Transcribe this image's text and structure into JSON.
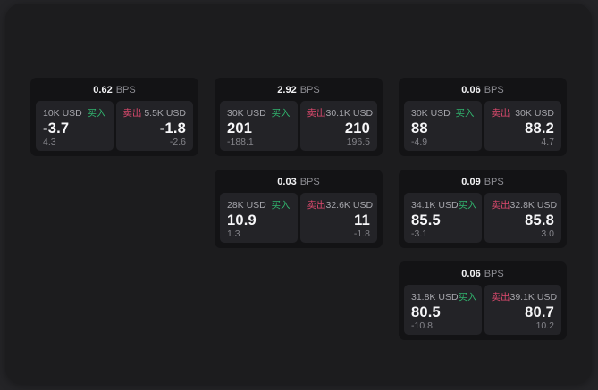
{
  "labels": {
    "buy": "买入",
    "sell": "卖出",
    "bps_unit": "BPS"
  },
  "colors": {
    "buy_green": "#31b46e",
    "sell_red": "#dd4a6e",
    "page_bg": "#242427",
    "panel_bg": "#1c1c1e",
    "card_bg": "#131315",
    "subpanel_bg": "#232327"
  },
  "cards": [
    {
      "bps": "0.62",
      "buy": {
        "amount": "10K USD",
        "value": "-3.7",
        "sub": "4.3"
      },
      "sell": {
        "amount": "5.5K USD",
        "value": "-1.8",
        "sub": "-2.6"
      }
    },
    {
      "bps": "2.92",
      "buy": {
        "amount": "30K USD",
        "value": "201",
        "sub": "-188.1"
      },
      "sell": {
        "amount": "30.1K USD",
        "value": "210",
        "sub": "196.5"
      }
    },
    {
      "bps": "0.06",
      "buy": {
        "amount": "30K USD",
        "value": "88",
        "sub": "-4.9"
      },
      "sell": {
        "amount": "30K USD",
        "value": "88.2",
        "sub": "4.7"
      }
    },
    {
      "bps": "0.03",
      "buy": {
        "amount": "28K USD",
        "value": "10.9",
        "sub": "1.3"
      },
      "sell": {
        "amount": "32.6K USD",
        "value": "11",
        "sub": "-1.8"
      }
    },
    {
      "bps": "0.09",
      "buy": {
        "amount": "34.1K USD",
        "value": "85.5",
        "sub": "-3.1"
      },
      "sell": {
        "amount": "32.8K USD",
        "value": "85.8",
        "sub": "3.0"
      }
    },
    {
      "bps": "0.06",
      "buy": {
        "amount": "31.8K USD",
        "value": "80.5",
        "sub": "-10.8"
      },
      "sell": {
        "amount": "39.1K USD",
        "value": "80.7",
        "sub": "10.2"
      }
    }
  ]
}
